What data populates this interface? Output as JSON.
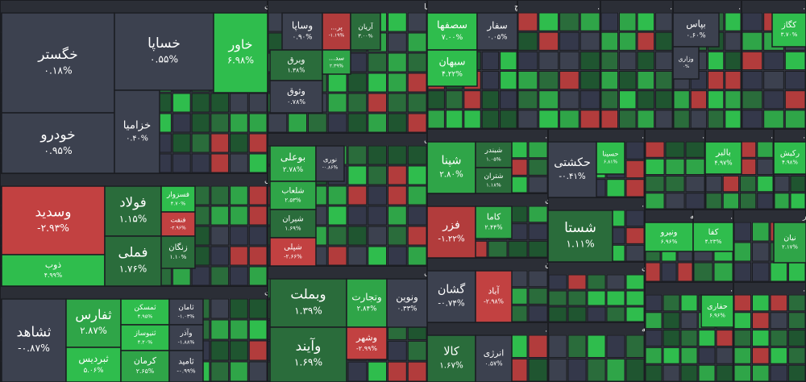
{
  "sectors": [
    {
      "title": "خودرو و ساخت قطعات",
      "tiles": [
        {
          "name": "خگستر",
          "change": "۰.۱۸%",
          "color": "#3c414f"
        },
        {
          "name": "خودرو",
          "change": "۰.۹۵%",
          "color": "#3c414f"
        },
        {
          "name": "خساپا",
          "change": "۰.۵۵%",
          "color": "#3c414f"
        },
        {
          "name": "خاور",
          "change": "۶.۹۸%",
          "color": "#2fbd4d"
        },
        {
          "name": "خزامیا",
          "change": "۰.۴۰%",
          "color": "#3c414f"
        }
      ]
    },
    {
      "title": "سرمایه گذاریها",
      "tiles": [
        {
          "name": "وساپا",
          "change": "۰.۹۰%",
          "color": "#3c414f"
        },
        {
          "name": "پر...",
          "change": "-۱.۱۹%",
          "color": "#b23c3c"
        },
        {
          "name": "آریان",
          "change": "۳.۰۰%",
          "color": "#2a6c3b"
        },
        {
          "name": "وبرق",
          "change": "۱.۳۸%",
          "color": "#2a6c3b"
        },
        {
          "name": "وثوق",
          "change": "۰.۷۸%",
          "color": "#3c414f"
        },
        {
          "name": "سد...",
          "change": "۲.۳۹%",
          "color": "#2fa548"
        }
      ]
    },
    {
      "title": "سیمان، آهک و گچ",
      "tiles": [
        {
          "name": "سصفها",
          "change": "۷.۰۰%",
          "color": "#2fbd4d"
        },
        {
          "name": "سفار",
          "change": "۰.۰۵%",
          "color": "#3c414f"
        },
        {
          "name": "سبهان",
          "change": "۴.۲۲%",
          "color": "#2fbd4d"
        }
      ]
    },
    {
      "title": "محصولات غذ...",
      "tiles": []
    },
    {
      "title": "مواد و مح...",
      "tiles": []
    },
    {
      "title": "بیمه وصن...",
      "tiles": [
        {
          "name": "بپاس",
          "change": "۰.۶۰%",
          "color": "#3c414f"
        },
        {
          "name": "وزاری",
          "change": "۰%",
          "color": "#3c414f"
        }
      ]
    },
    {
      "title": "سایر محص...",
      "tiles": [
        {
          "name": "کگاز",
          "change": "۳.۷۰%",
          "color": "#2fbd4d"
        }
      ]
    },
    {
      "title": "فلزات اساسی",
      "tiles": [
        {
          "name": "وسدید",
          "change": "-۲.۹۳%",
          "color": "#c24141"
        },
        {
          "name": "ذوب",
          "change": "۴.۹۹%",
          "color": "#2fbd4d"
        },
        {
          "name": "فولاد",
          "change": "۱.۱۵%",
          "color": "#2a6c3b"
        },
        {
          "name": "فملی",
          "change": "۱.۷۶%",
          "color": "#2a6c3b"
        },
        {
          "name": "فسزوار",
          "change": "۴.۷۰%",
          "color": "#2fbd4d"
        },
        {
          "name": "فنفت",
          "change": "-۲.۹۶%",
          "color": "#c24141"
        },
        {
          "name": "زنگان",
          "change": "۱.۱۰%",
          "color": "#2a6c3b"
        }
      ]
    },
    {
      "title": "انبوه سازی، املاک و مستغلات",
      "tiles": [
        {
          "name": "ثشاهد",
          "change": "-۰.۸۷%",
          "color": "#3c414f"
        },
        {
          "name": "ثفارس",
          "change": "۲.۸۷%",
          "color": "#2fa548"
        },
        {
          "name": "ثبردیس",
          "change": "۵.۰۶%",
          "color": "#2fbd4d"
        },
        {
          "name": "ثمسکن",
          "change": "۴.۹۵%",
          "color": "#2fbd4d"
        },
        {
          "name": "ثنیوساز",
          "change": "۴.۲۰%",
          "color": "#2fbd4d"
        },
        {
          "name": "کرمان",
          "change": "۲.۶۵%",
          "color": "#2fa548"
        },
        {
          "name": "ثامان",
          "change": "-۱.۰۳%",
          "color": "#3c414f"
        },
        {
          "name": "وآذر",
          "change": "-۱.۸۸%",
          "color": "#3c414f"
        },
        {
          "name": "ثامید",
          "change": "-۰.۹۹%",
          "color": "#3c414f"
        }
      ]
    },
    {
      "title": "محصولات شیمیایی",
      "tiles": [
        {
          "name": "بوعلی",
          "change": "۲.۷۸%",
          "color": "#2fa548"
        },
        {
          "name": "شلعاب",
          "change": "۲.۵۳%",
          "color": "#2fa548"
        },
        {
          "name": "شیران",
          "change": "۱.۶۹%",
          "color": "#2a6c3b"
        },
        {
          "name": "شپلی",
          "change": "-۲.۶۶%",
          "color": "#c24141"
        },
        {
          "name": "نوری",
          "change": "-۰.۸۶%",
          "color": "#3c414f"
        }
      ]
    },
    {
      "title": "بانکها و موسسات اعتباری",
      "tiles": [
        {
          "name": "وبملت",
          "change": "۱.۳۹%",
          "color": "#2a6c3b"
        },
        {
          "name": "وآیند",
          "change": "۱.۶۹%",
          "color": "#2a6c3b"
        },
        {
          "name": "وتجارت",
          "change": "۲.۸۴%",
          "color": "#2fa548"
        },
        {
          "name": "ونوین",
          "change": "۰.۳۳%",
          "color": "#3c414f"
        },
        {
          "name": "وشهر",
          "change": "-۲.۹۹%",
          "color": "#c24141"
        }
      ]
    },
    {
      "title": "فراورده های نفت...",
      "tiles": [
        {
          "name": "شپنا",
          "change": "۲.۸۰%",
          "color": "#2fa548"
        },
        {
          "name": "شبندر",
          "change": "۱.۰۵%",
          "color": "#2a6c3b"
        },
        {
          "name": "شتران",
          "change": "۱.۱۸%",
          "color": "#2a6c3b"
        }
      ]
    },
    {
      "title": "استخراج کانه های فلزی",
      "tiles": [
        {
          "name": "فزر",
          "change": "-۱.۲۲%",
          "color": "#b23c3c"
        },
        {
          "name": "کاما",
          "change": "۲.۴۴%",
          "color": "#2fa548"
        }
      ]
    },
    {
      "title": "هتل و رستوران",
      "tiles": [
        {
          "name": "گشان",
          "change": "-۰.۷۴%",
          "color": "#3c414f"
        },
        {
          "name": "آباد",
          "change": "-۲.۹۸%",
          "color": "#c24141"
        }
      ]
    },
    {
      "title": "فعالیتهای کمکی...",
      "tiles": [
        {
          "name": "کالا",
          "change": "۱.۶۷%",
          "color": "#2a6c3b"
        },
        {
          "name": "انرژی",
          "change": "۰.۵۷%",
          "color": "#3c414f"
        }
      ]
    },
    {
      "title": "حمل ونقل، ان...",
      "tiles": [
        {
          "name": "حکشتی",
          "change": "-۰.۴۱%",
          "color": "#3c414f"
        },
        {
          "name": "حسینا",
          "change": "۶.۸۱%",
          "color": "#2fbd4d"
        }
      ]
    },
    {
      "title": "شرکتهای چند...",
      "tiles": [
        {
          "name": "شستا",
          "change": "۱.۱۱%",
          "color": "#2a6c3b"
        }
      ]
    },
    {
      "title": "اطلاعات و ارتباطات",
      "tiles": []
    },
    {
      "title": "زراعت و خدمات وابسته",
      "tiles": []
    },
    {
      "title": "ماشین آل...",
      "tiles": []
    },
    {
      "title": "ماشین...",
      "tiles": [
        {
          "name": "بالبر",
          "change": "۴.۹۷%",
          "color": "#2fbd4d"
        }
      ]
    },
    {
      "title": "رایان...",
      "tiles": [
        {
          "name": "رکیش",
          "change": "۴.۹۸%",
          "color": "#2fbd4d"
        }
      ]
    },
    {
      "title": "عرضه",
      "tiles": [
        {
          "name": "ونیرو",
          "change": "۶.۹۶%",
          "color": "#2fbd4d"
        }
      ]
    },
    {
      "title": "ساخت...",
      "tiles": [
        {
          "name": "کفا",
          "change": "۴.۲۳%",
          "color": "#2fbd4d"
        }
      ]
    },
    {
      "title": "قند و شکر",
      "tiles": [
        {
          "name": "نیان",
          "change": "۲.۱۷%",
          "color": "#2fa548"
        }
      ]
    },
    {
      "title": "سایر بو...",
      "tiles": [
        {
          "name": "حفاری",
          "change": "۶.۹۶%",
          "color": "#2fbd4d"
        }
      ]
    },
    {
      "title": "استخ...",
      "tiles": []
    }
  ]
}
